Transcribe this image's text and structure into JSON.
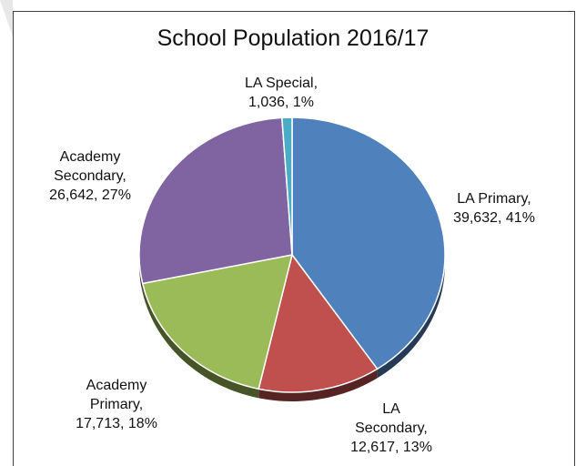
{
  "chart_data": {
    "type": "pie",
    "title": "School Population 2016/17",
    "slices": [
      {
        "name": "LA Primary",
        "value": 39632,
        "percent": "41%",
        "color": "#4f81bd",
        "label_lines": [
          "LA Primary,",
          "39,632, 41%"
        ]
      },
      {
        "name": "LA Secondary",
        "value": 12617,
        "percent": "13%",
        "color": "#c0504d",
        "label_lines": [
          "LA",
          "Secondary,",
          "12,617, 13%"
        ]
      },
      {
        "name": "Academy Primary",
        "value": 17713,
        "percent": "18%",
        "color": "#9bbb59",
        "label_lines": [
          "Academy",
          "Primary,",
          "17,713, 18%"
        ]
      },
      {
        "name": "Academy Secondary",
        "value": 26642,
        "percent": "27%",
        "color": "#8064a2",
        "label_lines": [
          "Academy",
          "Secondary,",
          "26,642, 27%"
        ]
      },
      {
        "name": "LA Special",
        "value": 1036,
        "percent": "1%",
        "color": "#4bacc6",
        "label_lines": [
          "LA  Special,",
          "1,036, 1%"
        ]
      }
    ],
    "start_angle": "12 o'clock, clockwise",
    "legend": "none"
  }
}
